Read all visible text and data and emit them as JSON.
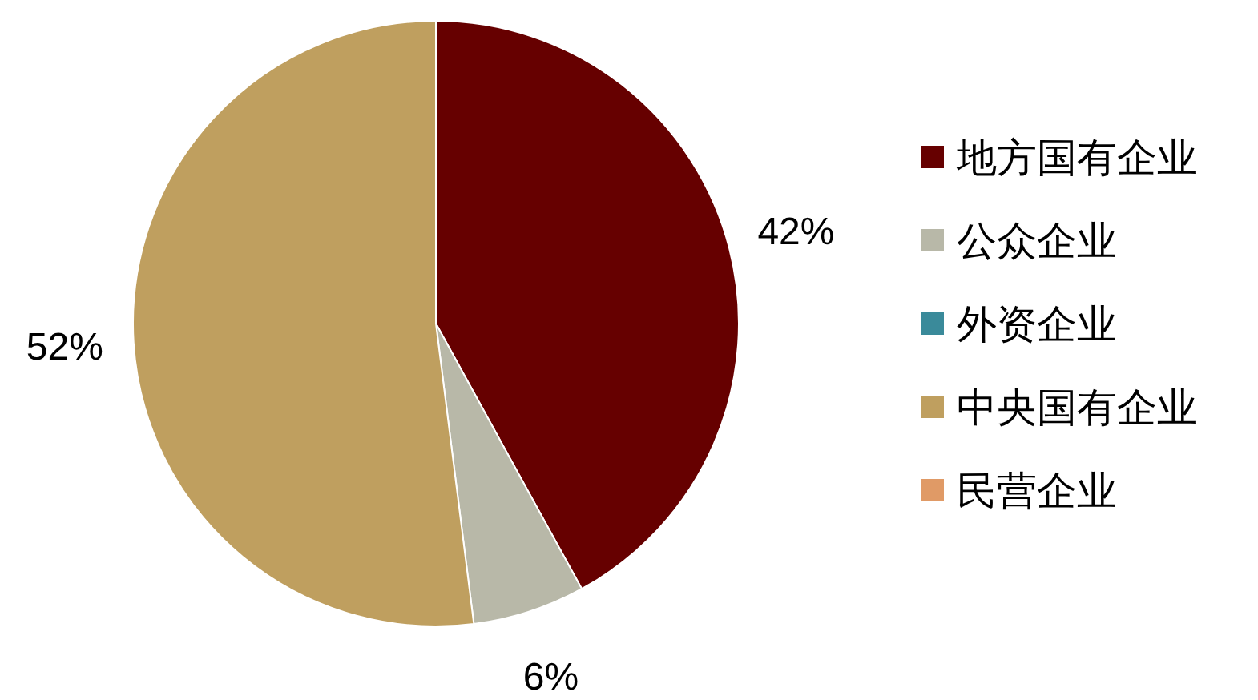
{
  "chart_data": {
    "type": "pie",
    "categories": [
      "地方国有企业",
      "公众企业",
      "外资企业",
      "中央国有企业",
      "民营企业"
    ],
    "values": [
      42,
      6,
      0,
      52,
      0
    ],
    "colors": [
      "#660000",
      "#b8b8a8",
      "#3a8a9a",
      "#bf9f5f",
      "#e09a66"
    ],
    "value_labels": [
      "42%",
      "6%",
      null,
      "52%",
      null
    ],
    "legend": "right"
  }
}
